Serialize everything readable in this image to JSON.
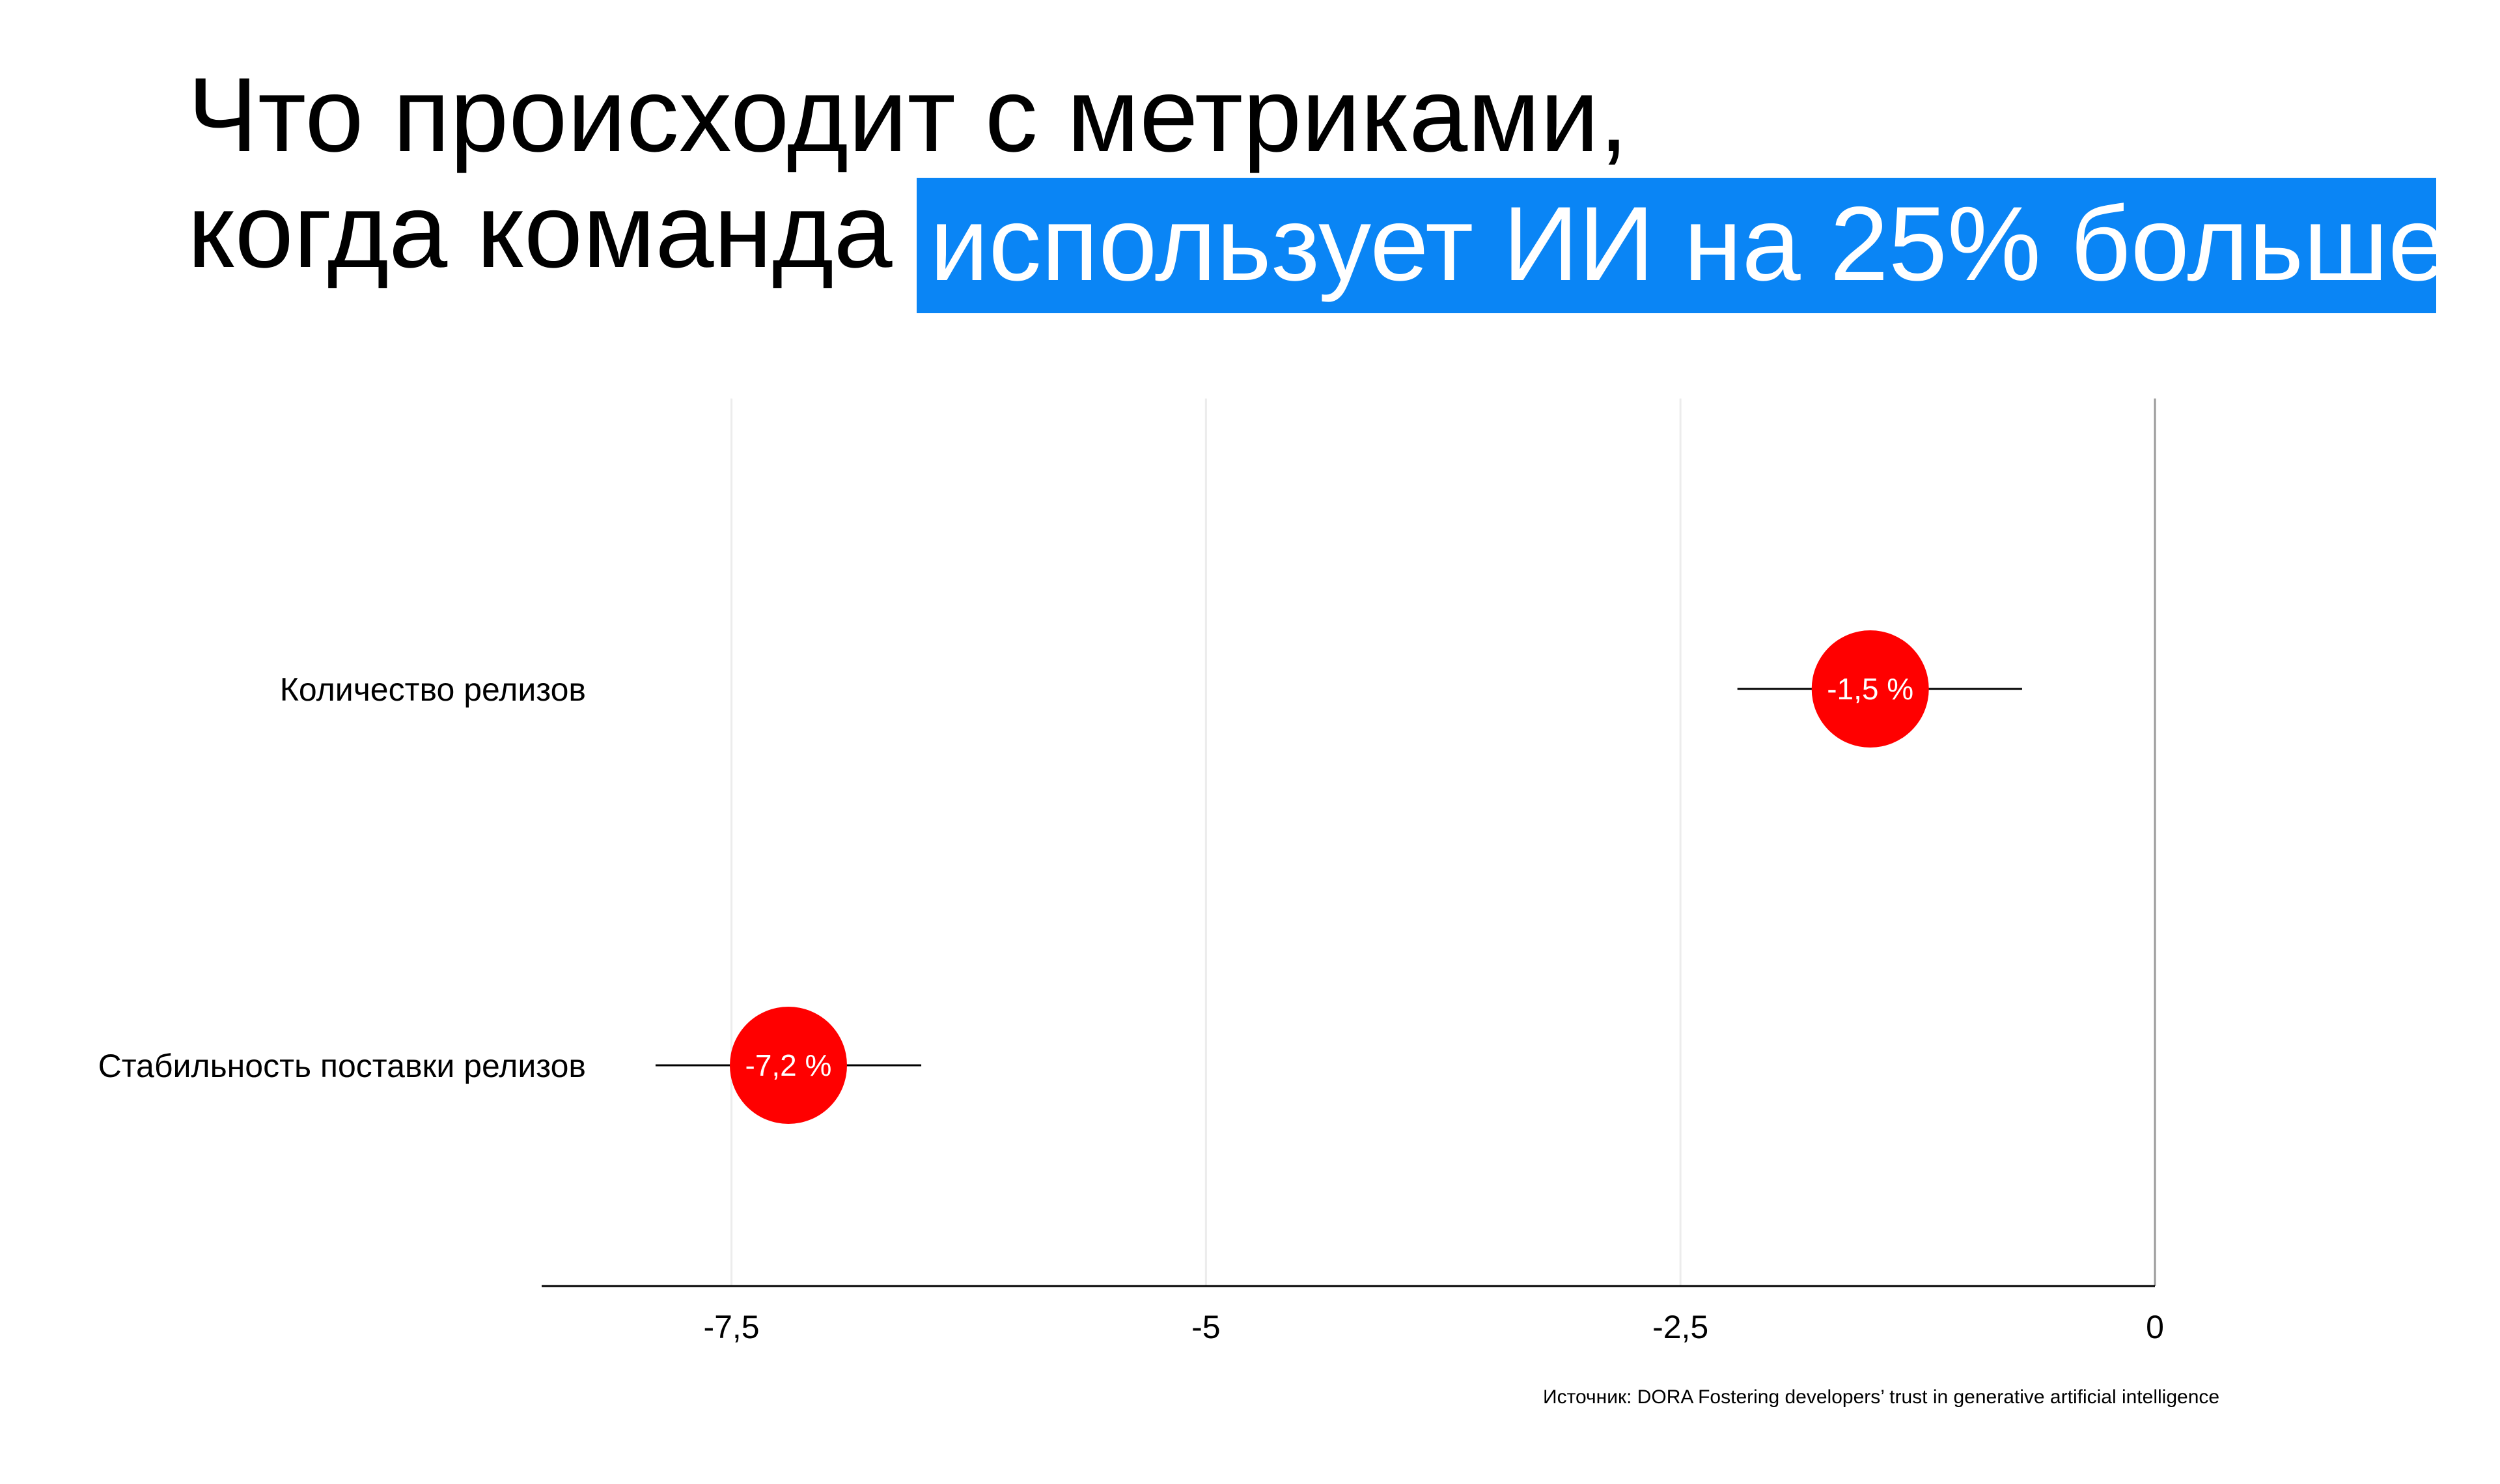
{
  "title": {
    "line1": "Что происходит с метриками,",
    "line2_plain": "когда команда",
    "line2_highlight": "использует ИИ на 25% больше",
    "highlight_color": "#0a85f5"
  },
  "chart_data": {
    "type": "scatter",
    "orientation": "horizontal",
    "categories": [
      "Количество релизов",
      "Стабильность поставки релизов"
    ],
    "series": [
      {
        "values": [
          -1.5,
          -7.2
        ],
        "ci_low": [
          -2.2,
          -7.9
        ],
        "ci_high": [
          -0.7,
          -6.5
        ],
        "labels": [
          "-1,5 %",
          "-7,2 %"
        ],
        "color": "#ff0000"
      }
    ],
    "xlim": [
      -8.5,
      0
    ],
    "xticks": [
      -7.5,
      -5,
      -2.5,
      0
    ],
    "xtick_labels": [
      "-7,5",
      "-5",
      "-2,5",
      "0"
    ],
    "grid": true,
    "title": "",
    "xlabel": "",
    "ylabel": ""
  },
  "source": "Источник: DORA Fostering developers’ trust in generative artificial intelligence"
}
